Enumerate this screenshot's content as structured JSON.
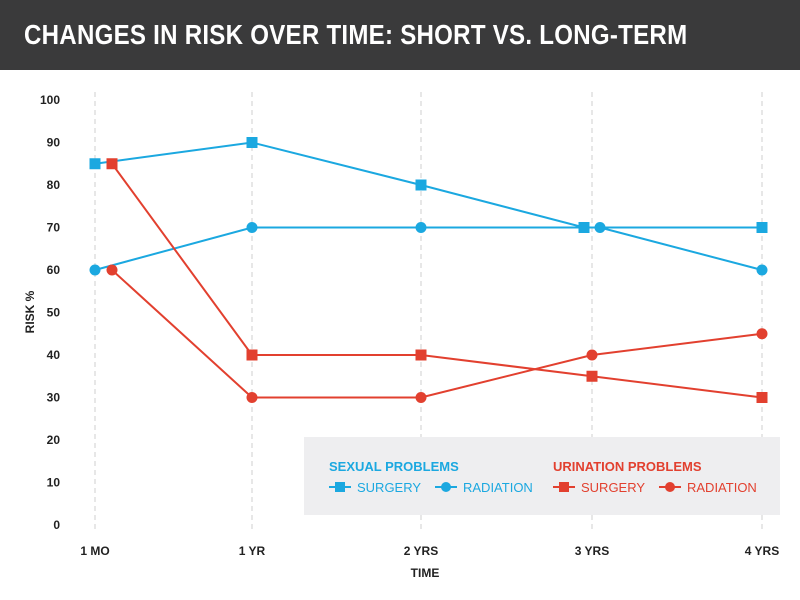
{
  "title": "CHANGES IN RISK OVER TIME: SHORT VS. LONG-TERM",
  "colors": {
    "title_bar": "#3a3a3b",
    "sexual": "#1ba8e0",
    "urination": "#e2402f",
    "legend_bg": "#eeeef0",
    "grid": "#cfcfcf"
  },
  "chart_data": {
    "type": "line",
    "title": "CHANGES IN RISK OVER TIME: SHORT VS. LONG-TERM",
    "xlabel": "TIME",
    "ylabel": "RISK %",
    "categories": [
      "1 MO",
      "1 YR",
      "2 YRS",
      "3 YRS",
      "4 YRS"
    ],
    "y_ticks": [
      "0",
      "10",
      "20",
      "30",
      "40",
      "50",
      "60",
      "70",
      "80",
      "90",
      "100"
    ],
    "ylim": [
      0,
      100
    ],
    "grid": "vertical dashed",
    "legend_position": "bottom-right",
    "legend_groups": [
      {
        "heading": "SEXUAL PROBLEMS",
        "color": "#1ba8e0"
      },
      {
        "heading": "URINATION PROBLEMS",
        "color": "#e2402f"
      }
    ],
    "series": [
      {
        "name": "SURGERY",
        "group": "SEXUAL PROBLEMS",
        "marker": "square",
        "color": "#1ba8e0",
        "values": [
          85,
          90,
          80,
          70,
          70
        ]
      },
      {
        "name": "RADIATION",
        "group": "SEXUAL PROBLEMS",
        "marker": "circle",
        "color": "#1ba8e0",
        "values": [
          60,
          70,
          70,
          70,
          60
        ]
      },
      {
        "name": "SURGERY",
        "group": "URINATION PROBLEMS",
        "marker": "square",
        "color": "#e2402f",
        "values": [
          85,
          40,
          40,
          35,
          30
        ]
      },
      {
        "name": "RADIATION",
        "group": "URINATION PROBLEMS",
        "marker": "circle",
        "color": "#e2402f",
        "values": [
          60,
          30,
          30,
          40,
          45
        ]
      }
    ]
  }
}
